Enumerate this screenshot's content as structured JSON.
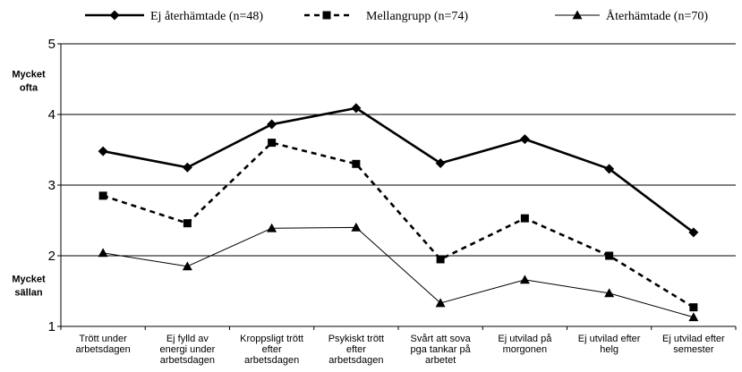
{
  "chart_data": {
    "type": "line",
    "title": "",
    "xlabel": "",
    "ylabel": "",
    "ylim": [
      1,
      5
    ],
    "yticks": [
      "1",
      "2",
      "3",
      "4",
      "5"
    ],
    "grid": true,
    "legend_position": "top",
    "y_annotations": [
      {
        "lines": [
          "Mycket",
          "ofta"
        ],
        "at": 4.5
      },
      {
        "lines": [
          "Mycket",
          "sällan"
        ],
        "at": 1.6
      }
    ],
    "categories": [
      [
        "Trött under",
        "arbetsdagen"
      ],
      [
        "Ej fylld av",
        "energi under",
        "arbetsdagen"
      ],
      [
        "Kroppsligt trött",
        "efter",
        "arbetsdagen"
      ],
      [
        "Psykiskt trött",
        "efter",
        "arbetsdagen"
      ],
      [
        "Svårt att sova",
        "pga tankar på",
        "arbetet"
      ],
      [
        "Ej utvilad på",
        "morgonen"
      ],
      [
        "Ej utvilad efter",
        "helg"
      ],
      [
        "Ej utvilad efter",
        "semester"
      ]
    ],
    "series": [
      {
        "name": "Ej återhämtade (n=48)",
        "values": [
          3.48,
          3.25,
          3.86,
          4.09,
          3.31,
          3.65,
          3.23,
          2.33
        ],
        "color": "#000000",
        "line": "solid-thick",
        "marker": "diamond"
      },
      {
        "name": "Mellangrupp (n=74)",
        "values": [
          2.85,
          2.46,
          3.6,
          3.3,
          1.95,
          2.53,
          2.0,
          1.27
        ],
        "color": "#000000",
        "line": "dashed-thick",
        "marker": "square"
      },
      {
        "name": "Återhämtade (n=70)",
        "values": [
          2.04,
          1.85,
          2.39,
          2.4,
          1.33,
          1.66,
          1.47,
          1.13
        ],
        "color": "#000000",
        "line": "solid-thin",
        "marker": "triangle"
      }
    ]
  }
}
